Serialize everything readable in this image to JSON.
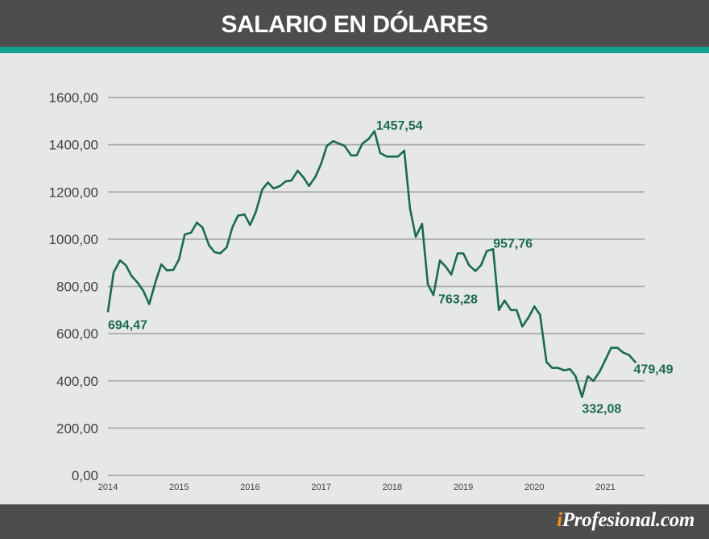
{
  "header": {
    "title": "SALARIO EN DÓLARES"
  },
  "footer": {
    "brand_prefix": "i",
    "brand_name": "Profesional.com"
  },
  "colors": {
    "line": "#1a6b4f",
    "header_bg": "#4d4d4d",
    "accent_bar": "#12a08f",
    "brand_i": "#f7941d",
    "background": "#e6e7e8"
  },
  "chart_data": {
    "type": "line",
    "title": "SALARIO EN DÓLARES",
    "xlabel": "",
    "ylabel": "",
    "ylim": [
      0,
      1600
    ],
    "xlim": [
      2014,
      2021.55
    ],
    "grid": true,
    "y_ticks": [
      "0,00",
      "200,00",
      "400,00",
      "600,00",
      "800,00",
      "1000,00",
      "1200,00",
      "1400,00",
      "1600,00"
    ],
    "x_ticks": [
      "2014",
      "2015",
      "2016",
      "2017",
      "2018",
      "2019",
      "2020",
      "2021"
    ],
    "series": [
      {
        "x": [
          2014.0,
          2014.08,
          2014.17,
          2014.25,
          2014.33,
          2014.42,
          2014.5,
          2014.58,
          2014.67,
          2014.75,
          2014.83,
          2014.92,
          2015.0,
          2015.08,
          2015.17,
          2015.25,
          2015.33,
          2015.42,
          2015.5,
          2015.58,
          2015.67,
          2015.75,
          2015.83,
          2015.92,
          2016.0,
          2016.08,
          2016.17,
          2016.25,
          2016.33,
          2016.42,
          2016.5,
          2016.58,
          2016.67,
          2016.75,
          2016.83,
          2016.92,
          2017.0,
          2017.08,
          2017.17,
          2017.25,
          2017.33,
          2017.42,
          2017.5,
          2017.58,
          2017.67,
          2017.75,
          2017.83,
          2017.92,
          2018.0,
          2018.08,
          2018.17,
          2018.25,
          2018.33,
          2018.42,
          2018.5,
          2018.58,
          2018.67,
          2018.75,
          2018.83,
          2018.92,
          2019.0,
          2019.08,
          2019.17,
          2019.25,
          2019.33,
          2019.42,
          2019.5,
          2019.58,
          2019.67,
          2019.75,
          2019.83,
          2019.92,
          2020.0,
          2020.08,
          2020.17,
          2020.25,
          2020.33,
          2020.42,
          2020.5,
          2020.58,
          2020.67,
          2020.75,
          2020.83,
          2020.92,
          2021.0,
          2021.08,
          2021.17,
          2021.25,
          2021.33,
          2021.42
        ],
        "values": [
          694.47,
          860,
          910,
          890,
          845,
          815,
          780,
          725,
          820,
          893,
          868,
          870,
          915,
          1020,
          1028,
          1070,
          1050,
          975,
          945,
          940,
          965,
          1050,
          1100,
          1105,
          1060,
          1115,
          1210,
          1240,
          1215,
          1225,
          1245,
          1248,
          1290,
          1262,
          1225,
          1265,
          1320,
          1395,
          1415,
          1405,
          1395,
          1355,
          1355,
          1405,
          1425,
          1457.54,
          1365,
          1350,
          1350,
          1350,
          1375,
          1130,
          1010,
          1065,
          810,
          763.28,
          910,
          885,
          850,
          940,
          940,
          890,
          865,
          890,
          950,
          957.76,
          700,
          740,
          700,
          700,
          630,
          670,
          715,
          680,
          480,
          455,
          455,
          445,
          450,
          420,
          332.08,
          420,
          400,
          440,
          490,
          540,
          540,
          520,
          510,
          479.49
        ]
      }
    ],
    "annotations": [
      {
        "label": "694,47",
        "x": 2014.0,
        "y": 694.47
      },
      {
        "label": "1457,54",
        "x": 2017.75,
        "y": 1457.54
      },
      {
        "label": "763,28",
        "x": 2018.58,
        "y": 763.28
      },
      {
        "label": "957,76",
        "x": 2019.42,
        "y": 957.76
      },
      {
        "label": "332,08",
        "x": 2020.67,
        "y": 332.08
      },
      {
        "label": "479,49",
        "x": 2021.42,
        "y": 479.49
      }
    ]
  }
}
